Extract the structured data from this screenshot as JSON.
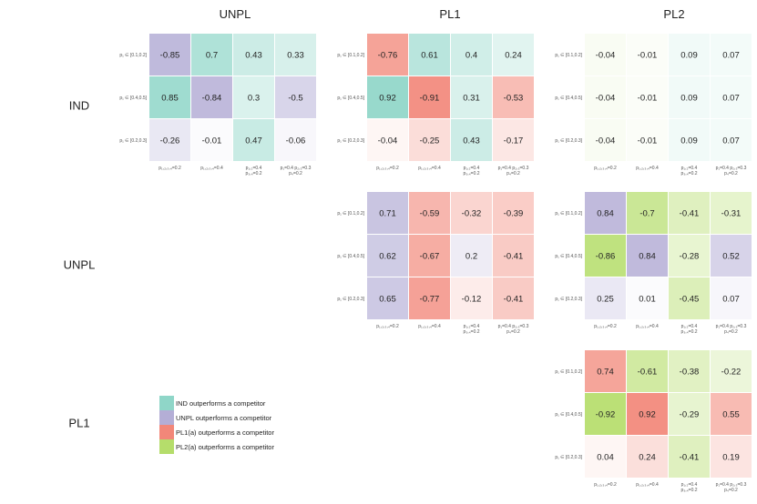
{
  "chart_data": {
    "type": "heatmap",
    "column_titles": [
      "UNPL",
      "PL1",
      "PL2"
    ],
    "row_titles": [
      "IND",
      "UNPL",
      "PL1"
    ],
    "row_labels": [
      "p₁ ∈ [0.1,0.2]",
      "p₁ ∈ [0.4,0.5]",
      "p₁ ∈ [0.2,0.3]"
    ],
    "col_labels": [
      [
        "p₁,₂,₃,₄=0.2"
      ],
      [
        "p₁,₂,₃,₄=0.4"
      ],
      [
        "p₁,₂=0.4",
        "p₃,₄=0.2"
      ],
      [
        "p₁=0.4 p₂,₃=0.3",
        "p₄=0.2"
      ]
    ],
    "panels": [
      {
        "row": 0,
        "col": 0,
        "values": [
          [
            -0.85,
            0.7,
            0.43,
            0.33
          ],
          [
            0.85,
            -0.84,
            0.3,
            -0.5
          ],
          [
            -0.26,
            -0.01,
            0.47,
            -0.06
          ]
        ],
        "pos_color": "#8fd6c8",
        "neg_color": "#b4aed6"
      },
      {
        "row": 0,
        "col": 1,
        "values": [
          [
            -0.76,
            0.61,
            0.4,
            0.24
          ],
          [
            0.92,
            -0.91,
            0.31,
            -0.53
          ],
          [
            -0.04,
            -0.25,
            0.43,
            -0.17
          ]
        ],
        "pos_color": "#8fd6c8",
        "neg_color": "#f28779"
      },
      {
        "row": 0,
        "col": 2,
        "values": [
          [
            -0.04,
            -0.01,
            0.09,
            0.07
          ],
          [
            -0.04,
            -0.01,
            0.09,
            0.07
          ],
          [
            -0.04,
            -0.01,
            0.09,
            0.07
          ]
        ],
        "pos_color": "#8fd6c8",
        "neg_color": "#b5dd6b"
      },
      {
        "row": 1,
        "col": 1,
        "values": [
          [
            0.71,
            -0.59,
            -0.32,
            -0.39
          ],
          [
            0.62,
            -0.67,
            0.2,
            -0.41
          ],
          [
            0.65,
            -0.77,
            -0.12,
            -0.41
          ]
        ],
        "pos_color": "#b4aed6",
        "neg_color": "#f28779"
      },
      {
        "row": 1,
        "col": 2,
        "values": [
          [
            0.84,
            -0.7,
            -0.41,
            -0.31
          ],
          [
            -0.86,
            0.84,
            -0.28,
            0.52
          ],
          [
            0.25,
            0.01,
            -0.45,
            0.07
          ]
        ],
        "pos_color": "#b4aed6",
        "neg_color": "#b5dd6b"
      },
      {
        "row": 2,
        "col": 2,
        "values": [
          [
            0.74,
            -0.61,
            -0.38,
            -0.22
          ],
          [
            -0.92,
            0.92,
            -0.29,
            0.55
          ],
          [
            0.04,
            0.24,
            -0.41,
            0.19
          ]
        ],
        "pos_color": "#f28779",
        "neg_color": "#b5dd6b"
      }
    ],
    "legend": [
      {
        "label": "IND outperforms a competitor",
        "color": "#8fd6c8"
      },
      {
        "label": "UNPL outperforms a competitor",
        "color": "#b4aed6"
      },
      {
        "label": "PL1(a) outperforms a competitor",
        "color": "#f28779"
      },
      {
        "label": "PL2(a) outperforms a competitor",
        "color": "#b5dd6b"
      }
    ]
  }
}
